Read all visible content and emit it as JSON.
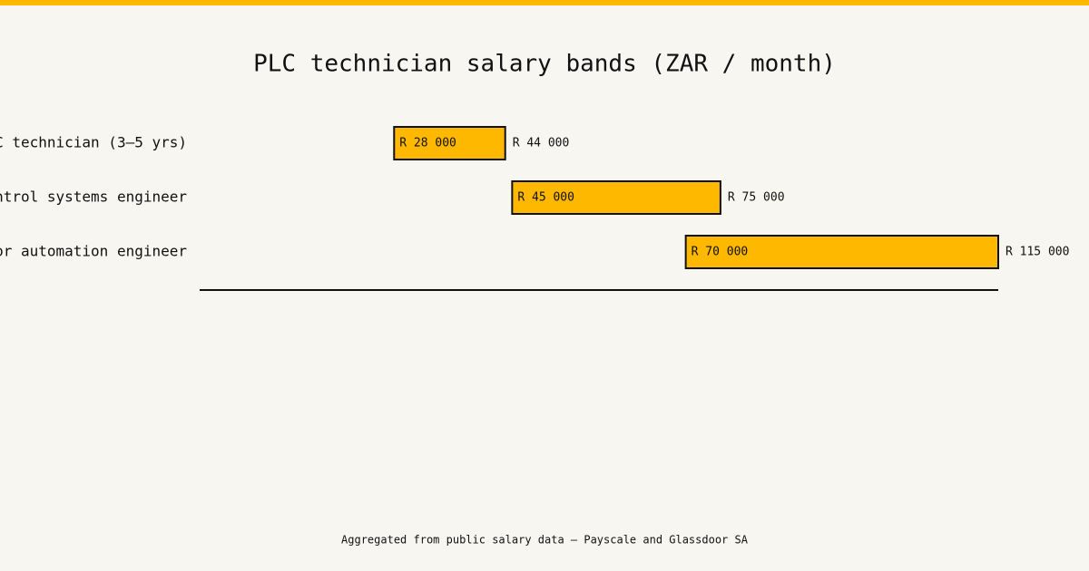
{
  "chart_data": {
    "type": "floating_bar",
    "title": "PLC technician salary bands (ZAR / month)",
    "categories": [
      "C technician (3–5 yrs)",
      "ntrol systems engineer",
      "or automation engineer"
    ],
    "low": {
      "values": [
        28000,
        45000,
        70000
      ],
      "value_labels": [
        "R 28 000",
        "R 45 000",
        "R 70 000"
      ]
    },
    "high": {
      "values": [
        44000,
        75000,
        115000
      ],
      "value_labels": [
        "R 44 000",
        "R 75 000",
        "R 115 000"
      ]
    },
    "color": "#ffb800",
    "xlim": [
      0,
      115000
    ],
    "footnote": "Aggregated from public salary data — Payscale and Glassdoor SA"
  }
}
